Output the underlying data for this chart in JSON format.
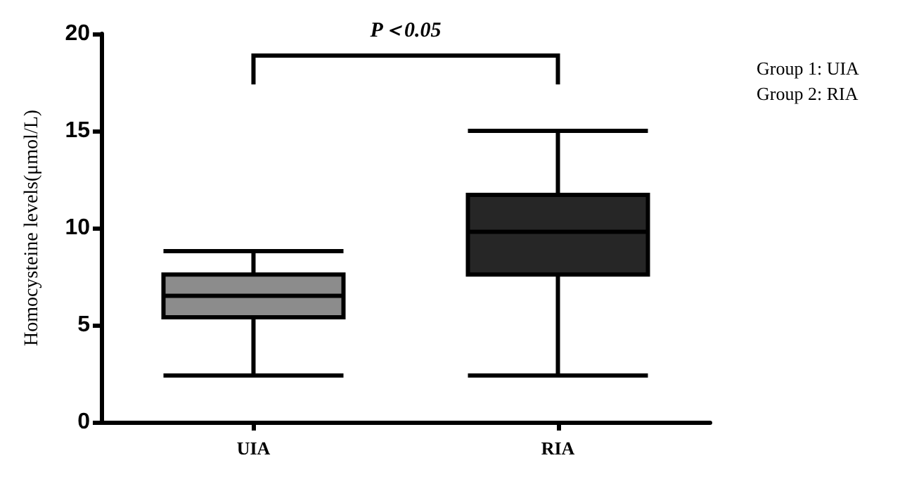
{
  "chart_data": {
    "type": "box",
    "ylabel": "Homocysteine levels(μmol/L)",
    "categories": [
      "UIA",
      "RIA"
    ],
    "boxes": [
      {
        "low": 2.4,
        "q1": 5.4,
        "median": 6.5,
        "q3": 7.6,
        "high": 8.8
      },
      {
        "low": 2.4,
        "q1": 7.6,
        "median": 9.8,
        "q3": 11.7,
        "high": 15
      }
    ],
    "colors": [
      "#8c8c8c",
      "#262626"
    ],
    "ylim": [
      0,
      20
    ],
    "yticks": [
      0,
      5,
      10,
      15,
      20
    ],
    "grid": false,
    "annotations": [
      "P＜0.05",
      "Group 1: UIA",
      "Group 2: RIA"
    ]
  }
}
